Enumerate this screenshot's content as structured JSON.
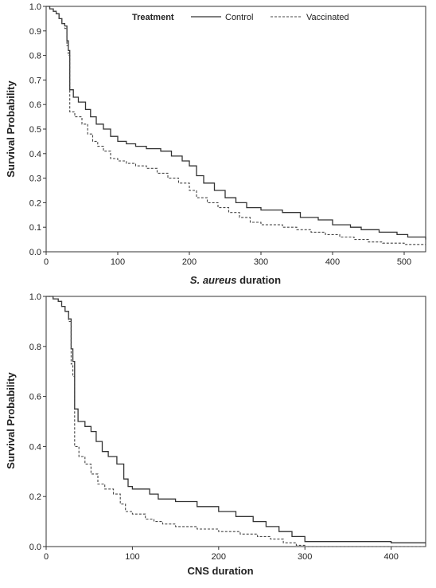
{
  "chart_data": [
    {
      "type": "line",
      "step": true,
      "xlabel_italic": "S. aureus",
      "xlabel_rest": " duration",
      "ylabel": "Survival Probability",
      "xlim": [
        0,
        530
      ],
      "ylim": [
        0,
        1.0
      ],
      "xticks": [
        0,
        100,
        200,
        300,
        400,
        500
      ],
      "yticks": [
        0.0,
        0.1,
        0.2,
        0.3,
        0.4,
        0.5,
        0.6,
        0.7,
        0.8,
        0.9,
        1.0
      ],
      "ytick_labels": [
        "0.0",
        "0.1",
        "0.2",
        "0.3",
        "0.4",
        "0.5",
        "0.6",
        "0.7",
        "0.8",
        "0.9",
        "1.0"
      ],
      "legend": {
        "title": "Treatment",
        "placement": "top-center",
        "entries": [
          "Control",
          "Vaccinated"
        ]
      },
      "series": [
        {
          "name": "Control",
          "dash": "solid",
          "color": "#333333",
          "points": [
            [
              0,
              1.0
            ],
            [
              5,
              0.99
            ],
            [
              10,
              0.98
            ],
            [
              14,
              0.97
            ],
            [
              18,
              0.95
            ],
            [
              22,
              0.93
            ],
            [
              26,
              0.92
            ],
            [
              29,
              0.86
            ],
            [
              31,
              0.82
            ],
            [
              33,
              0.66
            ],
            [
              38,
              0.63
            ],
            [
              45,
              0.61
            ],
            [
              55,
              0.58
            ],
            [
              62,
              0.55
            ],
            [
              70,
              0.52
            ],
            [
              80,
              0.5
            ],
            [
              90,
              0.47
            ],
            [
              100,
              0.45
            ],
            [
              112,
              0.44
            ],
            [
              125,
              0.43
            ],
            [
              140,
              0.42
            ],
            [
              160,
              0.41
            ],
            [
              175,
              0.39
            ],
            [
              190,
              0.37
            ],
            [
              200,
              0.35
            ],
            [
              210,
              0.31
            ],
            [
              220,
              0.28
            ],
            [
              235,
              0.25
            ],
            [
              250,
              0.22
            ],
            [
              265,
              0.2
            ],
            [
              280,
              0.18
            ],
            [
              300,
              0.17
            ],
            [
              330,
              0.16
            ],
            [
              355,
              0.14
            ],
            [
              380,
              0.13
            ],
            [
              400,
              0.11
            ],
            [
              425,
              0.1
            ],
            [
              440,
              0.09
            ],
            [
              465,
              0.08
            ],
            [
              490,
              0.07
            ],
            [
              505,
              0.06
            ],
            [
              530,
              0.05
            ]
          ]
        },
        {
          "name": "Vaccinated",
          "dash": "dashed",
          "color": "#444444",
          "points": [
            [
              0,
              1.0
            ],
            [
              5,
              0.99
            ],
            [
              10,
              0.98
            ],
            [
              14,
              0.97
            ],
            [
              18,
              0.95
            ],
            [
              22,
              0.93
            ],
            [
              26,
              0.91
            ],
            [
              29,
              0.84
            ],
            [
              31,
              0.8
            ],
            [
              33,
              0.57
            ],
            [
              40,
              0.55
            ],
            [
              50,
              0.52
            ],
            [
              58,
              0.48
            ],
            [
              65,
              0.45
            ],
            [
              72,
              0.43
            ],
            [
              80,
              0.41
            ],
            [
              90,
              0.38
            ],
            [
              100,
              0.37
            ],
            [
              112,
              0.36
            ],
            [
              125,
              0.35
            ],
            [
              140,
              0.34
            ],
            [
              155,
              0.32
            ],
            [
              170,
              0.3
            ],
            [
              185,
              0.28
            ],
            [
              200,
              0.25
            ],
            [
              210,
              0.22
            ],
            [
              225,
              0.2
            ],
            [
              240,
              0.18
            ],
            [
              255,
              0.16
            ],
            [
              270,
              0.14
            ],
            [
              285,
              0.12
            ],
            [
              300,
              0.11
            ],
            [
              330,
              0.1
            ],
            [
              350,
              0.09
            ],
            [
              370,
              0.08
            ],
            [
              390,
              0.07
            ],
            [
              410,
              0.06
            ],
            [
              430,
              0.05
            ],
            [
              450,
              0.04
            ],
            [
              470,
              0.035
            ],
            [
              500,
              0.03
            ],
            [
              530,
              0.025
            ]
          ]
        }
      ]
    },
    {
      "type": "line",
      "step": true,
      "xlabel": "CNS duration",
      "ylabel": "Survival Probability",
      "xlim": [
        0,
        440
      ],
      "ylim": [
        0,
        1.0
      ],
      "xticks": [
        0,
        100,
        200,
        300,
        400
      ],
      "yticks": [
        0.0,
        0.2,
        0.4,
        0.6,
        0.8,
        1.0
      ],
      "ytick_labels": [
        "0.0",
        "0.2",
        "0.4",
        "0.6",
        "0.8",
        "1.0"
      ],
      "series": [
        {
          "name": "Control",
          "dash": "solid",
          "color": "#333333",
          "points": [
            [
              0,
              1.0
            ],
            [
              8,
              0.99
            ],
            [
              14,
              0.98
            ],
            [
              18,
              0.96
            ],
            [
              22,
              0.94
            ],
            [
              26,
              0.91
            ],
            [
              29,
              0.79
            ],
            [
              31,
              0.74
            ],
            [
              33,
              0.55
            ],
            [
              37,
              0.5
            ],
            [
              45,
              0.48
            ],
            [
              52,
              0.46
            ],
            [
              58,
              0.42
            ],
            [
              65,
              0.38
            ],
            [
              72,
              0.36
            ],
            [
              82,
              0.33
            ],
            [
              90,
              0.27
            ],
            [
              95,
              0.24
            ],
            [
              100,
              0.23
            ],
            [
              120,
              0.21
            ],
            [
              130,
              0.19
            ],
            [
              150,
              0.18
            ],
            [
              175,
              0.16
            ],
            [
              200,
              0.14
            ],
            [
              220,
              0.12
            ],
            [
              240,
              0.1
            ],
            [
              255,
              0.08
            ],
            [
              270,
              0.06
            ],
            [
              285,
              0.04
            ],
            [
              300,
              0.02
            ],
            [
              320,
              0.02
            ],
            [
              400,
              0.015
            ],
            [
              440,
              0.015
            ]
          ]
        },
        {
          "name": "Vaccinated",
          "dash": "dashed",
          "color": "#444444",
          "points": [
            [
              0,
              1.0
            ],
            [
              8,
              0.99
            ],
            [
              14,
              0.98
            ],
            [
              18,
              0.96
            ],
            [
              22,
              0.94
            ],
            [
              26,
              0.9
            ],
            [
              29,
              0.73
            ],
            [
              31,
              0.68
            ],
            [
              33,
              0.4
            ],
            [
              38,
              0.36
            ],
            [
              45,
              0.33
            ],
            [
              52,
              0.29
            ],
            [
              60,
              0.25
            ],
            [
              68,
              0.23
            ],
            [
              78,
              0.21
            ],
            [
              86,
              0.17
            ],
            [
              92,
              0.14
            ],
            [
              100,
              0.13
            ],
            [
              115,
              0.11
            ],
            [
              125,
              0.1
            ],
            [
              135,
              0.09
            ],
            [
              150,
              0.08
            ],
            [
              175,
              0.07
            ],
            [
              200,
              0.06
            ],
            [
              225,
              0.05
            ],
            [
              245,
              0.04
            ],
            [
              260,
              0.03
            ],
            [
              275,
              0.015
            ],
            [
              290,
              0.005
            ],
            [
              300,
              0.0
            ],
            [
              440,
              0.0
            ]
          ]
        }
      ]
    }
  ]
}
